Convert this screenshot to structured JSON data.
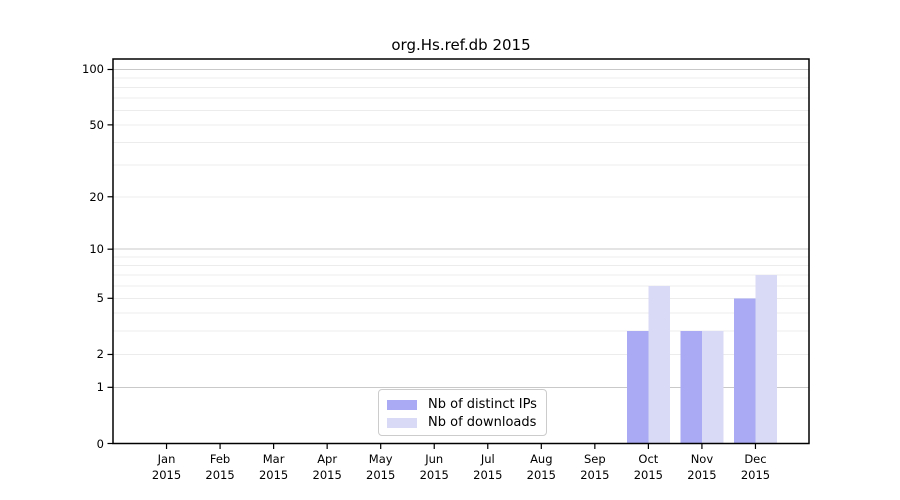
{
  "chart_data": {
    "type": "bar",
    "title": "org.Hs.ref.db 2015",
    "categories": [
      "Jan",
      "Feb",
      "Mar",
      "Apr",
      "May",
      "Jun",
      "Jul",
      "Aug",
      "Sep",
      "Oct",
      "Nov",
      "Dec"
    ],
    "x_year_label": "2015",
    "series": [
      {
        "name": "Nb of distinct IPs",
        "color": "#a9aaf3",
        "values": [
          0,
          0,
          0,
          0,
          0,
          0,
          0,
          0,
          0,
          3,
          3,
          5
        ]
      },
      {
        "name": "Nb of downloads",
        "color": "#d9daf6",
        "values": [
          0,
          0,
          0,
          0,
          0,
          0,
          0,
          0,
          0,
          6,
          3,
          7
        ]
      }
    ],
    "xlabel": "",
    "ylabel": "",
    "y_scale": "log1p",
    "ylim": [
      0,
      114
    ],
    "y_ticks": [
      0,
      1,
      2,
      5,
      10,
      20,
      50,
      100
    ],
    "y_grid_major": [
      1,
      10,
      100
    ],
    "y_grid_minor": [
      2,
      3,
      4,
      5,
      6,
      7,
      8,
      9,
      20,
      30,
      40,
      50,
      60,
      70,
      80,
      90
    ],
    "grid": "horizontal",
    "legend_position": "inside-bottom-center"
  }
}
